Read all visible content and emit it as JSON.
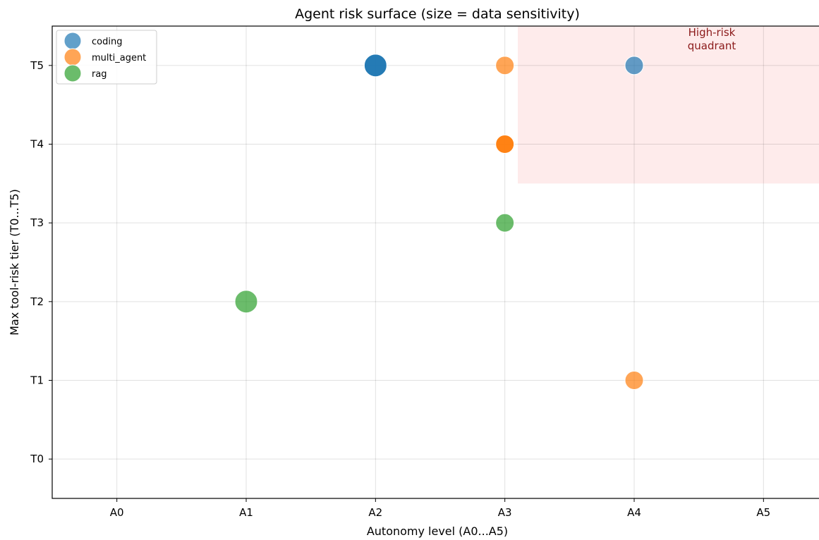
{
  "chart_data": {
    "type": "scatter",
    "title": "Agent risk surface (size = data sensitivity)",
    "xlabel": "Autonomy level (A0...A5)",
    "ylabel": "Max tool-risk tier (T0...T5)",
    "x_tick_labels": [
      "A0",
      "A1",
      "A2",
      "A3",
      "A4",
      "A5"
    ],
    "y_tick_labels": [
      "T0",
      "T1",
      "T2",
      "T3",
      "T4",
      "T5"
    ],
    "xlim": [
      -0.5,
      5.5
    ],
    "ylim": [
      -0.5,
      5.5
    ],
    "grid": true,
    "legend_position": "upper-left",
    "high_risk_region": {
      "x_from": 3.1,
      "y_from": 3.5,
      "label_lines": [
        "High-risk",
        "quadrant"
      ],
      "color": "#fde0e0"
    },
    "series": [
      {
        "name": "coding",
        "color": "#1f77b4",
        "points": [
          {
            "x": 2,
            "y": 5,
            "count": 3,
            "sensitivity": 3
          },
          {
            "x": 4,
            "y": 5,
            "count": 1,
            "sensitivity": 2
          }
        ]
      },
      {
        "name": "multi_agent",
        "color": "#ff7f0e",
        "points": [
          {
            "x": 3,
            "y": 5,
            "count": 1,
            "sensitivity": 2
          },
          {
            "x": 3,
            "y": 4,
            "count": 3,
            "sensitivity": 2
          },
          {
            "x": 4,
            "y": 1,
            "count": 1,
            "sensitivity": 2
          }
        ]
      },
      {
        "name": "rag",
        "color": "#2ca02c",
        "points": [
          {
            "x": 1,
            "y": 2,
            "count": 1,
            "sensitivity": 3
          },
          {
            "x": 3,
            "y": 3,
            "count": 1,
            "sensitivity": 2
          }
        ]
      }
    ]
  }
}
